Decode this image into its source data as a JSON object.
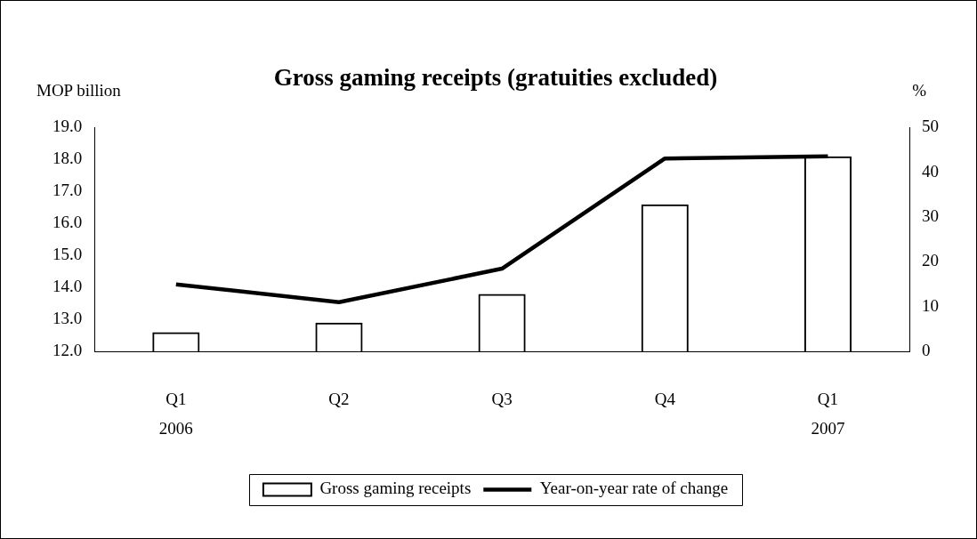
{
  "chart_data": {
    "type": "bar",
    "title": "Gross gaming receipts (gratuities excluded)",
    "ylabel": "MOP billion",
    "y2label": "%",
    "categories": [
      "Q1",
      "Q2",
      "Q3",
      "Q4",
      "Q1"
    ],
    "series": [
      {
        "name": "Gross gaming receipts",
        "type": "bar",
        "color": "#000000",
        "values": [
          12.6,
          12.9,
          13.8,
          16.6,
          18.1
        ]
      },
      {
        "name": "Year-on-year rate of change",
        "type": "line",
        "axis": "y2",
        "color": "#000000",
        "values": [
          15,
          11,
          18.5,
          43.1,
          43.6
        ]
      }
    ],
    "ylim": [
      12,
      19
    ],
    "yticks": [
      {
        "value": 12,
        "label": "12.0"
      },
      {
        "value": 13,
        "label": "13.0"
      },
      {
        "value": 14,
        "label": "14.0"
      },
      {
        "value": 15,
        "label": "15.0"
      },
      {
        "value": 16,
        "label": "16.0"
      },
      {
        "value": 17,
        "label": "17.0"
      },
      {
        "value": 18,
        "label": "18.0"
      },
      {
        "value": 19,
        "label": "19.0"
      }
    ],
    "y2lim": [
      0,
      50
    ],
    "y2ticks": [
      0,
      10,
      20,
      30,
      40,
      50
    ],
    "annotations": [
      "2006",
      "2007"
    ],
    "legend": "bottom",
    "grid": false,
    "marker": "none",
    "line_style": "solid"
  }
}
